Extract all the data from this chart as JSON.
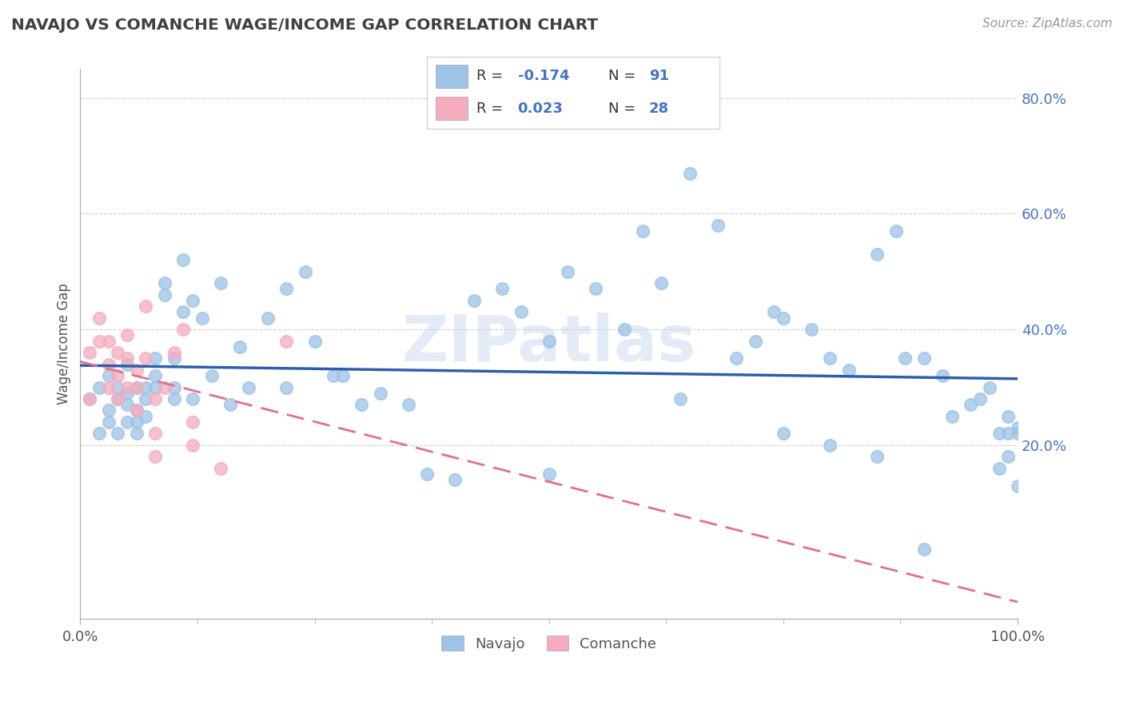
{
  "title": "NAVAJO VS COMANCHE WAGE/INCOME GAP CORRELATION CHART",
  "source": "Source: ZipAtlas.com",
  "ylabel": "Wage/Income Gap",
  "x_min": 0.0,
  "x_max": 1.0,
  "y_min": -0.1,
  "y_max": 0.85,
  "y_ticks": [
    0.2,
    0.4,
    0.6,
    0.8
  ],
  "y_tick_labels": [
    "20.0%",
    "40.0%",
    "60.0%",
    "80.0%"
  ],
  "navajo_color": "#9DC3E6",
  "comanche_color": "#F4ACBE",
  "navajo_line_color": "#2E5FAC",
  "comanche_line_color": "#E07090",
  "navajo_R": -0.174,
  "navajo_N": 91,
  "comanche_R": 0.023,
  "comanche_N": 28,
  "background_color": "#FFFFFF",
  "grid_color": "#CCCCCC",
  "title_color": "#404040",
  "watermark": "ZIPatlas",
  "navajo_x": [
    0.01,
    0.02,
    0.02,
    0.03,
    0.03,
    0.03,
    0.04,
    0.04,
    0.04,
    0.05,
    0.05,
    0.05,
    0.05,
    0.06,
    0.06,
    0.06,
    0.06,
    0.07,
    0.07,
    0.07,
    0.08,
    0.08,
    0.08,
    0.09,
    0.09,
    0.1,
    0.1,
    0.1,
    0.11,
    0.11,
    0.12,
    0.12,
    0.13,
    0.14,
    0.15,
    0.16,
    0.17,
    0.18,
    0.2,
    0.22,
    0.22,
    0.24,
    0.25,
    0.27,
    0.28,
    0.3,
    0.32,
    0.35,
    0.37,
    0.4,
    0.42,
    0.45,
    0.47,
    0.5,
    0.5,
    0.52,
    0.55,
    0.58,
    0.6,
    0.62,
    0.64,
    0.65,
    0.68,
    0.7,
    0.72,
    0.74,
    0.75,
    0.78,
    0.8,
    0.82,
    0.85,
    0.87,
    0.88,
    0.9,
    0.92,
    0.93,
    0.95,
    0.96,
    0.97,
    0.98,
    0.98,
    0.99,
    0.99,
    0.99,
    1.0,
    1.0,
    1.0,
    0.9,
    0.85,
    0.8,
    0.75
  ],
  "navajo_y": [
    0.28,
    0.3,
    0.22,
    0.26,
    0.32,
    0.24,
    0.28,
    0.3,
    0.22,
    0.34,
    0.27,
    0.24,
    0.29,
    0.26,
    0.3,
    0.24,
    0.22,
    0.3,
    0.25,
    0.28,
    0.3,
    0.35,
    0.32,
    0.46,
    0.48,
    0.3,
    0.35,
    0.28,
    0.43,
    0.52,
    0.45,
    0.28,
    0.42,
    0.32,
    0.48,
    0.27,
    0.37,
    0.3,
    0.42,
    0.3,
    0.47,
    0.5,
    0.38,
    0.32,
    0.32,
    0.27,
    0.29,
    0.27,
    0.15,
    0.14,
    0.45,
    0.47,
    0.43,
    0.38,
    0.15,
    0.5,
    0.47,
    0.4,
    0.57,
    0.48,
    0.28,
    0.67,
    0.58,
    0.35,
    0.38,
    0.43,
    0.42,
    0.4,
    0.35,
    0.33,
    0.53,
    0.57,
    0.35,
    0.35,
    0.32,
    0.25,
    0.27,
    0.28,
    0.3,
    0.22,
    0.16,
    0.22,
    0.18,
    0.25,
    0.23,
    0.22,
    0.13,
    0.02,
    0.18,
    0.2,
    0.22
  ],
  "comanche_x": [
    0.01,
    0.01,
    0.02,
    0.02,
    0.03,
    0.03,
    0.03,
    0.04,
    0.04,
    0.04,
    0.05,
    0.05,
    0.05,
    0.06,
    0.06,
    0.06,
    0.07,
    0.07,
    0.08,
    0.08,
    0.08,
    0.09,
    0.1,
    0.11,
    0.12,
    0.12,
    0.15,
    0.22
  ],
  "comanche_y": [
    0.36,
    0.28,
    0.38,
    0.42,
    0.3,
    0.34,
    0.38,
    0.28,
    0.32,
    0.36,
    0.3,
    0.35,
    0.39,
    0.26,
    0.33,
    0.3,
    0.44,
    0.35,
    0.18,
    0.22,
    0.28,
    0.3,
    0.36,
    0.4,
    0.24,
    0.2,
    0.16,
    0.38
  ]
}
